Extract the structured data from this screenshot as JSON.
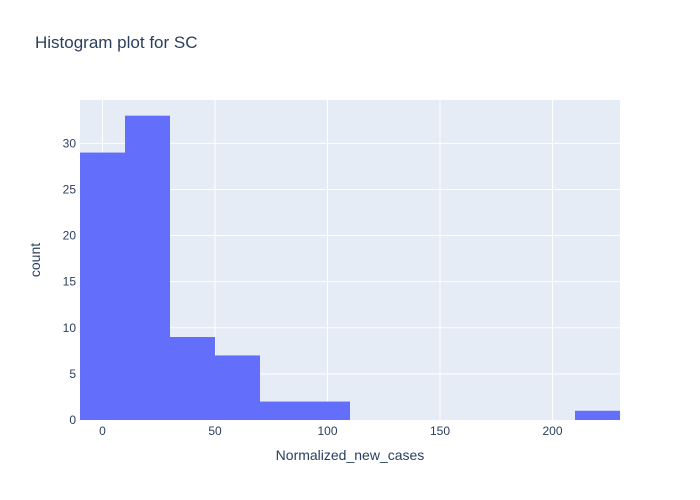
{
  "chart_data": {
    "type": "bar",
    "title": "Histogram plot for SC",
    "xlabel": "Normalized_new_cases",
    "ylabel": "count",
    "bin_width": 20,
    "bins": [
      {
        "start": -10,
        "end": 10,
        "count": 29
      },
      {
        "start": 10,
        "end": 30,
        "count": 33
      },
      {
        "start": 30,
        "end": 50,
        "count": 9
      },
      {
        "start": 50,
        "end": 70,
        "count": 7
      },
      {
        "start": 70,
        "end": 90,
        "count": 2
      },
      {
        "start": 90,
        "end": 110,
        "count": 2
      },
      {
        "start": 110,
        "end": 130,
        "count": 0
      },
      {
        "start": 130,
        "end": 150,
        "count": 0
      },
      {
        "start": 150,
        "end": 170,
        "count": 0
      },
      {
        "start": 170,
        "end": 190,
        "count": 0
      },
      {
        "start": 190,
        "end": 210,
        "count": 0
      },
      {
        "start": 210,
        "end": 230,
        "count": 1
      }
    ],
    "xlim": [
      -10,
      230
    ],
    "ylim": [
      0,
      34.7
    ],
    "xticks": [
      0,
      50,
      100,
      150,
      200
    ],
    "yticks": [
      0,
      5,
      10,
      15,
      20,
      25,
      30
    ],
    "grid": true,
    "colors": {
      "bar": "#636efa",
      "plot_background": "#e5ecf6",
      "grid": "#ffffff",
      "text": "#2a3f5f"
    }
  }
}
